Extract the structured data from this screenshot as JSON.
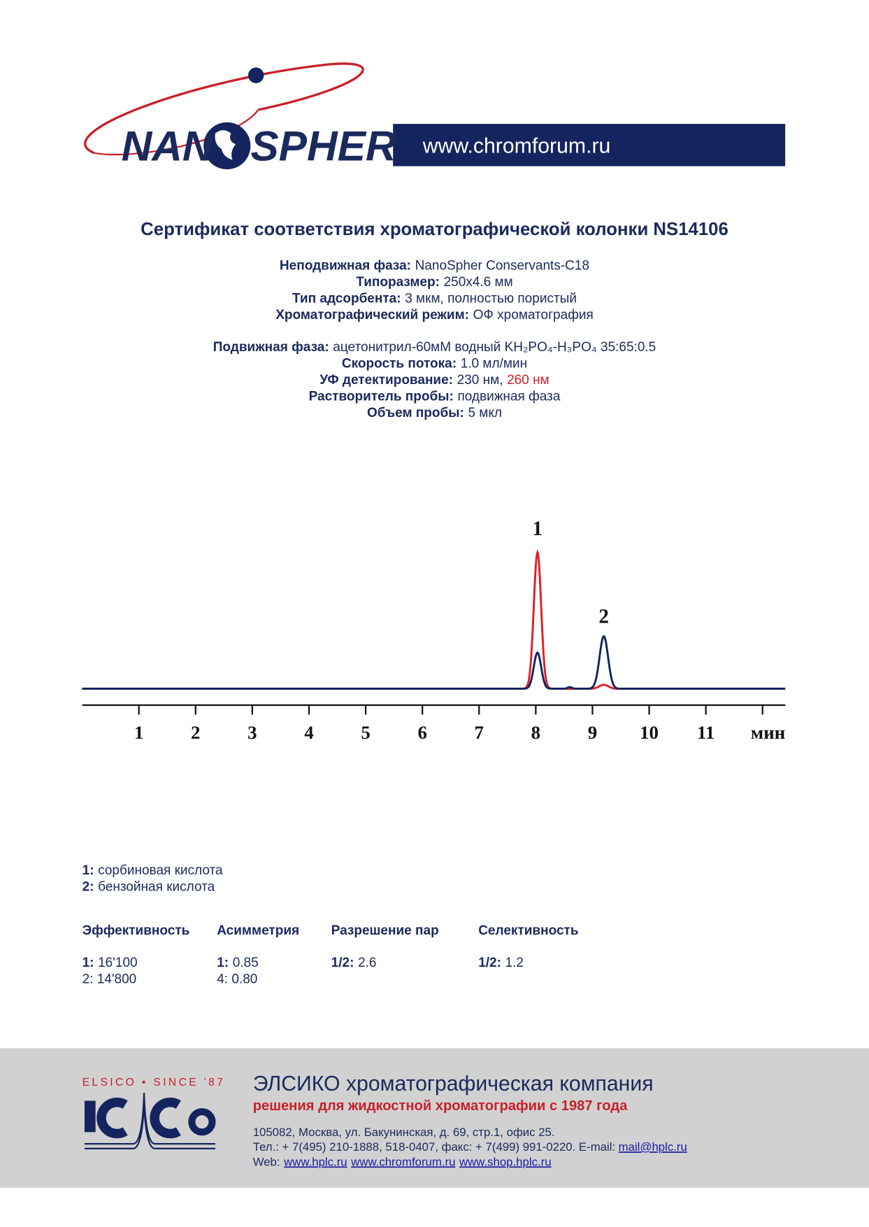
{
  "header": {
    "logo_left": "NAN",
    "logo_right": "SPHER",
    "website": "www.chromforum.ru"
  },
  "title": "Сертификат соответствия хроматографической колонки NS14106",
  "parameters": [
    [
      {
        "label": "Неподвижная фаза:",
        "value": "NanoSpher Conservants-C18"
      },
      {
        "label": "Типоразмер:",
        "value": "250x4.6 мм"
      },
      {
        "label": "Тип адсорбента:",
        "value": "3 мкм, полностью пористый"
      },
      {
        "label": "Хроматографический режим:",
        "value": "ОФ хроматография"
      }
    ],
    [
      {
        "label": "Подвижная фаза:",
        "value": "ацетонитрил-60мМ водный KH₂PO₄-H₃PO₄ 35:65:0.5"
      },
      {
        "label": "Скорость потока:",
        "value": "1.0 мл/мин"
      },
      {
        "label": "УФ детектирование:",
        "value": "230 нм,",
        "extra": "260 нм",
        "extra_color": "#d42027"
      },
      {
        "label": "Растворитель пробы:",
        "value": "подвижная фаза"
      },
      {
        "label": "Объем пробы:",
        "value": "5 мкл"
      }
    ]
  ],
  "chromatogram": {
    "xlim": [
      0,
      12.4
    ],
    "ylim": [
      0,
      200
    ],
    "xticks": [
      1,
      2,
      3,
      4,
      5,
      6,
      7,
      8,
      9,
      10,
      11,
      {
        "value": 12,
        "label": null
      }
    ],
    "x_unit": "мин",
    "series": [
      {
        "color": "#e01e26",
        "peaks": {
          "x": [
            8.03,
            9.2
          ],
          "height": [
            174,
            5
          ],
          "width": [
            0.065,
            0.08
          ]
        }
      },
      {
        "color": "#14245e",
        "peaks": {
          "x": [
            8.03,
            8.6,
            9.2
          ],
          "height": [
            46,
            2,
            67
          ],
          "width": [
            0.065,
            0.04,
            0.075
          ]
        }
      }
    ],
    "peak_labels": [
      {
        "text": "1",
        "x": 8.03,
        "y": 196
      },
      {
        "text": "2",
        "x": 9.2,
        "y": 84
      }
    ]
  },
  "compounds": [
    {
      "id": "1:",
      "name": "сорбиновая кислота"
    },
    {
      "id": "2:",
      "name": "бензойная кислота"
    }
  ],
  "metrics": [
    {
      "header": "Эффективность",
      "lines": [
        {
          "key": "1:",
          "text": "16'100"
        },
        {
          "key": null,
          "text": "2: 14'800"
        }
      ]
    },
    {
      "header": "Асимметрия",
      "lines": [
        {
          "key": "1:",
          "text": "0.85"
        },
        {
          "key": null,
          "text": "4: 0.80"
        }
      ]
    },
    {
      "header": "Разрешение пар",
      "lines": [
        {
          "key": "1/2:",
          "text": "2.6"
        }
      ]
    },
    {
      "header": "Селективность",
      "lines": [
        {
          "key": "1/2:",
          "text": "1.2"
        }
      ]
    }
  ],
  "footer": {
    "logo_caption": "ELSICO • SINCE '87",
    "company": "ЭЛСИКО хроматографическая компания",
    "slogan": "решения для жидкостной хроматографии с 1987 года",
    "address": "105082, Москва, ул. Бакунинская, д. 69, стр.1, офис 25.",
    "phone": "Тел.: + 7(495) 210-1888, 518-0407, факс: + 7(499) 991-0220. E-mail:",
    "email": "mail@hplc.ru",
    "web_label": "Web:",
    "links": [
      "www.hplc.ru",
      "www.chromforum.ru",
      "www.shop.hplc.ru"
    ]
  }
}
